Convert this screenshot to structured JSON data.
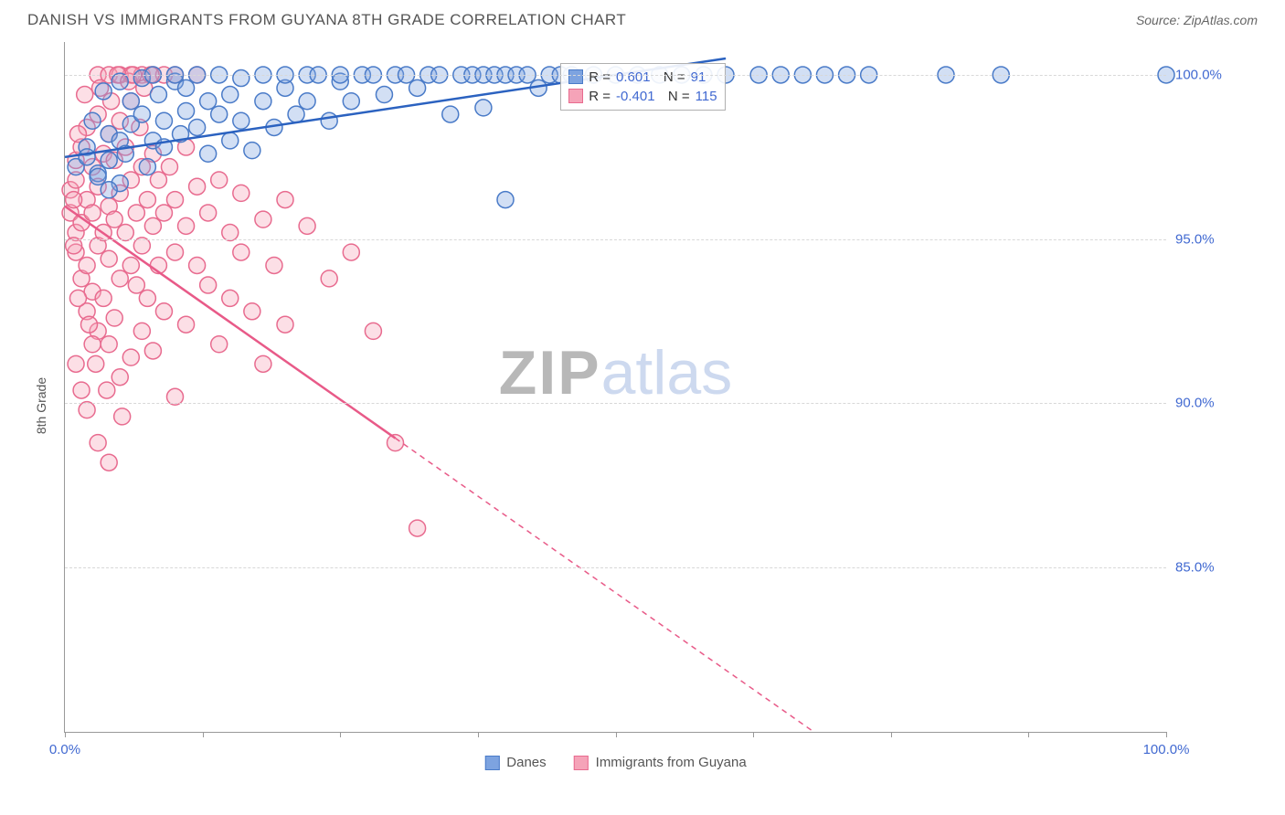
{
  "header": {
    "title": "DANISH VS IMMIGRANTS FROM GUYANA 8TH GRADE CORRELATION CHART",
    "source": "Source: ZipAtlas.com"
  },
  "chart": {
    "type": "scatter",
    "y_axis_label": "8th Grade",
    "xlim": [
      0,
      100
    ],
    "ylim": [
      80,
      101
    ],
    "xtick_positions": [
      0,
      12.5,
      25,
      37.5,
      50,
      62.5,
      75,
      87.5,
      100
    ],
    "xtick_labels": {
      "0": "0.0%",
      "100": "100.0%"
    },
    "yticks": [
      85,
      90,
      95,
      100
    ],
    "ytick_labels": [
      "85.0%",
      "90.0%",
      "95.0%",
      "100.0%"
    ],
    "grid_color": "#d8d8d8",
    "background_color": "#ffffff",
    "axis_color": "#999999",
    "tick_font_color": "#4169d1",
    "tick_fontsize": 15,
    "label_fontsize": 14,
    "marker_radius": 9,
    "marker_fill_opacity": 0.35,
    "marker_stroke_width": 1.5,
    "line_width": 2.5,
    "series": [
      {
        "name": "Danes",
        "color_fill": "#7da3e0",
        "color_stroke": "#4a7bc8",
        "line_color": "#2b62c0",
        "R": "0.601",
        "N": "91",
        "regression": {
          "x1": 0,
          "y1": 97.5,
          "x2": 60,
          "y2": 100.5,
          "solid_until_x": 60
        },
        "points": [
          [
            1,
            97.2
          ],
          [
            2,
            97.8
          ],
          [
            2.5,
            98.6
          ],
          [
            3,
            97
          ],
          [
            3.5,
            99.5
          ],
          [
            4,
            98.2
          ],
          [
            4,
            97.4
          ],
          [
            5,
            99.8
          ],
          [
            5,
            98
          ],
          [
            5.5,
            97.6
          ],
          [
            6,
            99.2
          ],
          [
            6,
            98.5
          ],
          [
            7,
            99.9
          ],
          [
            7,
            98.8
          ],
          [
            7.5,
            97.2
          ],
          [
            8,
            98
          ],
          [
            8,
            100
          ],
          [
            8.5,
            99.4
          ],
          [
            9,
            98.6
          ],
          [
            9,
            97.8
          ],
          [
            10,
            99.8
          ],
          [
            10,
            100
          ],
          [
            10.5,
            98.2
          ],
          [
            11,
            98.9
          ],
          [
            11,
            99.6
          ],
          [
            12,
            98.4
          ],
          [
            12,
            100
          ],
          [
            13,
            99.2
          ],
          [
            13,
            97.6
          ],
          [
            14,
            98.8
          ],
          [
            14,
            100
          ],
          [
            15,
            99.4
          ],
          [
            15,
            98
          ],
          [
            16,
            99.9
          ],
          [
            16,
            98.6
          ],
          [
            17,
            97.7
          ],
          [
            18,
            99.2
          ],
          [
            18,
            100
          ],
          [
            19,
            98.4
          ],
          [
            20,
            99.6
          ],
          [
            20,
            100
          ],
          [
            21,
            98.8
          ],
          [
            22,
            99.2
          ],
          [
            22,
            100
          ],
          [
            23,
            100
          ],
          [
            24,
            98.6
          ],
          [
            25,
            99.8
          ],
          [
            25,
            100
          ],
          [
            26,
            99.2
          ],
          [
            27,
            100
          ],
          [
            28,
            100
          ],
          [
            29,
            99.4
          ],
          [
            30,
            100
          ],
          [
            31,
            100
          ],
          [
            32,
            99.6
          ],
          [
            33,
            100
          ],
          [
            34,
            100
          ],
          [
            35,
            98.8
          ],
          [
            36,
            100
          ],
          [
            37,
            100
          ],
          [
            38,
            100
          ],
          [
            38,
            99
          ],
          [
            39,
            100
          ],
          [
            40,
            96.2
          ],
          [
            40,
            100
          ],
          [
            41,
            100
          ],
          [
            42,
            100
          ],
          [
            43,
            99.6
          ],
          [
            44,
            100
          ],
          [
            45,
            100
          ],
          [
            46,
            100
          ],
          [
            48,
            100
          ],
          [
            50,
            100
          ],
          [
            52,
            100
          ],
          [
            54,
            100
          ],
          [
            56,
            100
          ],
          [
            58,
            100
          ],
          [
            60,
            100
          ],
          [
            63,
            100
          ],
          [
            65,
            100
          ],
          [
            67,
            100
          ],
          [
            69,
            100
          ],
          [
            71,
            100
          ],
          [
            73,
            100
          ],
          [
            80,
            100
          ],
          [
            85,
            100
          ],
          [
            100,
            100
          ],
          [
            5,
            96.7
          ],
          [
            3,
            96.9
          ],
          [
            2,
            97.5
          ],
          [
            4,
            96.5
          ]
        ]
      },
      {
        "name": "Immigrants from Guyana",
        "color_fill": "#f5a3b8",
        "color_stroke": "#e86b8f",
        "line_color": "#e85a88",
        "R": "-0.401",
        "N": "115",
        "regression": {
          "x1": 0,
          "y1": 96,
          "x2": 68,
          "y2": 80,
          "solid_until_x": 30
        },
        "points": [
          [
            0.5,
            95.8
          ],
          [
            0.5,
            96.5
          ],
          [
            1,
            95.2
          ],
          [
            1,
            96.8
          ],
          [
            1,
            97.4
          ],
          [
            1,
            94.6
          ],
          [
            1.5,
            95.5
          ],
          [
            1.5,
            93.8
          ],
          [
            1.5,
            97.8
          ],
          [
            2,
            96.2
          ],
          [
            2,
            94.2
          ],
          [
            2,
            98.4
          ],
          [
            2,
            92.8
          ],
          [
            2.5,
            95.8
          ],
          [
            2.5,
            97.2
          ],
          [
            2.5,
            93.4
          ],
          [
            3,
            96.6
          ],
          [
            3,
            94.8
          ],
          [
            3,
            98.8
          ],
          [
            3,
            92.2
          ],
          [
            3,
            100
          ],
          [
            3.5,
            95.2
          ],
          [
            3.5,
            97.6
          ],
          [
            3.5,
            93.2
          ],
          [
            4,
            96
          ],
          [
            4,
            94.4
          ],
          [
            4,
            98.2
          ],
          [
            4,
            91.8
          ],
          [
            4,
            100
          ],
          [
            4.5,
            95.6
          ],
          [
            4.5,
            97.4
          ],
          [
            4.5,
            92.6
          ],
          [
            5,
            96.4
          ],
          [
            5,
            93.8
          ],
          [
            5,
            98.6
          ],
          [
            5,
            90.8
          ],
          [
            5,
            100
          ],
          [
            5.5,
            95.2
          ],
          [
            5.5,
            97.8
          ],
          [
            6,
            96.8
          ],
          [
            6,
            94.2
          ],
          [
            6,
            99.2
          ],
          [
            6,
            91.4
          ],
          [
            6,
            100
          ],
          [
            6.5,
            95.8
          ],
          [
            6.5,
            93.6
          ],
          [
            7,
            97.2
          ],
          [
            7,
            94.8
          ],
          [
            7,
            92.2
          ],
          [
            7,
            100
          ],
          [
            7.5,
            96.2
          ],
          [
            7.5,
            93.2
          ],
          [
            8,
            97.6
          ],
          [
            8,
            95.4
          ],
          [
            8,
            91.6
          ],
          [
            8,
            100
          ],
          [
            8.5,
            96.8
          ],
          [
            8.5,
            94.2
          ],
          [
            9,
            95.8
          ],
          [
            9,
            92.8
          ],
          [
            9,
            100
          ],
          [
            9.5,
            97.2
          ],
          [
            10,
            96.2
          ],
          [
            10,
            94.6
          ],
          [
            10,
            90.2
          ],
          [
            10,
            100
          ],
          [
            11,
            95.4
          ],
          [
            11,
            97.8
          ],
          [
            11,
            92.4
          ],
          [
            12,
            96.6
          ],
          [
            12,
            94.2
          ],
          [
            12,
            100
          ],
          [
            13,
            95.8
          ],
          [
            13,
            93.6
          ],
          [
            14,
            96.8
          ],
          [
            14,
            91.8
          ],
          [
            15,
            95.2
          ],
          [
            15,
            93.2
          ],
          [
            16,
            96.4
          ],
          [
            16,
            94.6
          ],
          [
            17,
            92.8
          ],
          [
            18,
            95.6
          ],
          [
            18,
            91.2
          ],
          [
            19,
            94.2
          ],
          [
            20,
            96.2
          ],
          [
            20,
            92.4
          ],
          [
            22,
            95.4
          ],
          [
            24,
            93.8
          ],
          [
            26,
            94.6
          ],
          [
            28,
            92.2
          ],
          [
            30,
            88.8
          ],
          [
            32,
            86.2
          ],
          [
            3,
            88.8
          ],
          [
            4,
            88.2
          ],
          [
            2,
            89.8
          ],
          [
            1,
            91.2
          ],
          [
            1.5,
            90.4
          ],
          [
            2.5,
            91.8
          ],
          [
            0.8,
            96.2
          ],
          [
            0.8,
            94.8
          ],
          [
            1.2,
            98.2
          ],
          [
            1.2,
            93.2
          ],
          [
            1.8,
            99.4
          ],
          [
            2.2,
            92.4
          ],
          [
            2.8,
            91.2
          ],
          [
            3.2,
            99.6
          ],
          [
            3.8,
            90.4
          ],
          [
            4.2,
            99.2
          ],
          [
            4.8,
            100
          ],
          [
            5.2,
            89.6
          ],
          [
            5.8,
            99.8
          ],
          [
            6.2,
            100
          ],
          [
            6.8,
            98.4
          ],
          [
            7.2,
            99.6
          ],
          [
            7.8,
            100
          ]
        ]
      }
    ],
    "stats_box": {
      "left_pct": 45,
      "top_pct": 3
    },
    "watermark": {
      "text_bold": "ZIP",
      "text_light": "atlas"
    }
  },
  "legend": {
    "series1_label": "Danes",
    "series2_label": "Immigrants from Guyana"
  }
}
